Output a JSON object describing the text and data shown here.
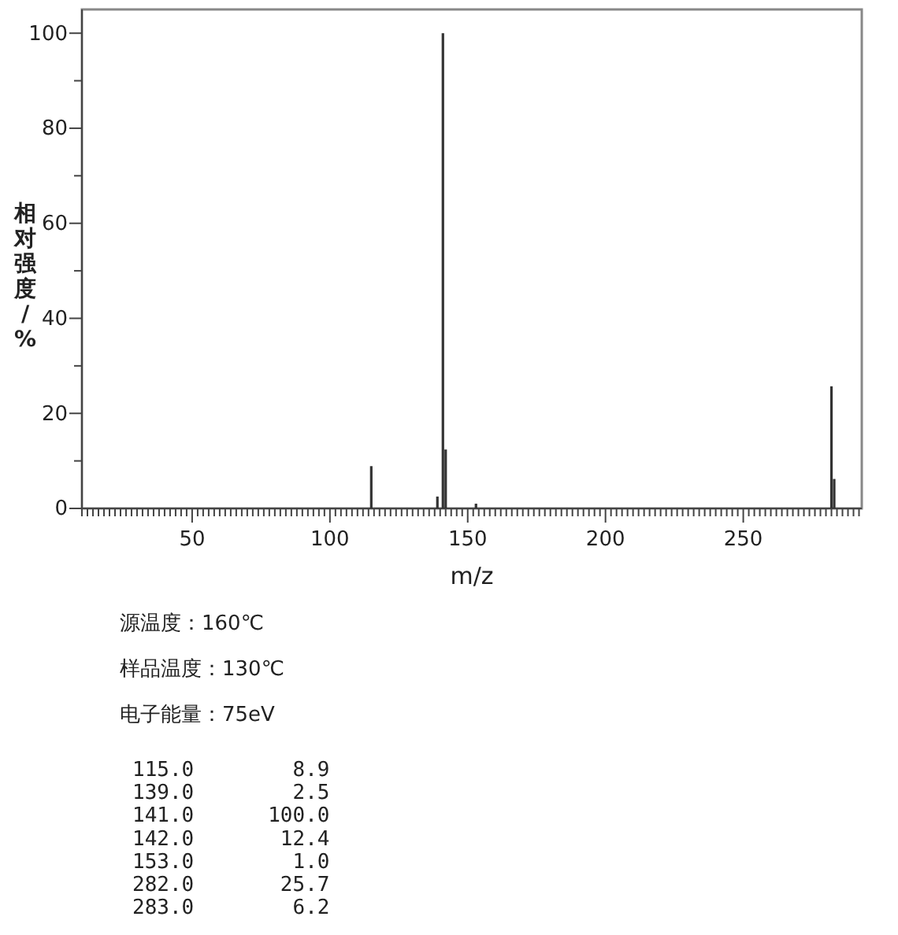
{
  "chart_data": {
    "type": "bar",
    "xlabel": "m/z",
    "ylabel": "相对强度/%",
    "x": [
      115,
      139,
      141,
      142,
      153,
      282,
      283
    ],
    "values": [
      8.9,
      2.5,
      100,
      12.4,
      1.0,
      25.7,
      6.2
    ],
    "color": "#333333",
    "xlim": [
      10,
      293
    ],
    "ylim": [
      0,
      105
    ],
    "xticks": [
      {
        "value": 10,
        "label": null
      },
      {
        "value": 12,
        "label": null
      },
      {
        "value": 14,
        "label": null
      },
      {
        "value": 16,
        "label": null
      },
      {
        "value": 18,
        "label": null
      },
      {
        "value": 20,
        "label": null
      },
      {
        "value": 22,
        "label": null
      },
      {
        "value": 24,
        "label": null
      },
      {
        "value": 26,
        "label": null
      },
      {
        "value": 28,
        "label": null
      },
      {
        "value": 30,
        "label": null
      },
      {
        "value": 32,
        "label": null
      },
      {
        "value": 34,
        "label": null
      },
      {
        "value": 36,
        "label": null
      },
      {
        "value": 38,
        "label": null
      },
      {
        "value": 40,
        "label": null
      },
      {
        "value": 42,
        "label": null
      },
      {
        "value": 44,
        "label": null
      },
      {
        "value": 46,
        "label": null
      },
      {
        "value": 48,
        "label": null
      },
      50,
      {
        "value": 52,
        "label": null
      },
      {
        "value": 54,
        "label": null
      },
      {
        "value": 56,
        "label": null
      },
      {
        "value": 58,
        "label": null
      },
      {
        "value": 60,
        "label": null
      },
      {
        "value": 62,
        "label": null
      },
      {
        "value": 64,
        "label": null
      },
      {
        "value": 66,
        "label": null
      },
      {
        "value": 68,
        "label": null
      },
      {
        "value": 70,
        "label": null
      },
      {
        "value": 72,
        "label": null
      },
      {
        "value": 74,
        "label": null
      },
      {
        "value": 76,
        "label": null
      },
      {
        "value": 78,
        "label": null
      },
      {
        "value": 80,
        "label": null
      },
      {
        "value": 82,
        "label": null
      },
      {
        "value": 84,
        "label": null
      },
      {
        "value": 86,
        "label": null
      },
      {
        "value": 88,
        "label": null
      },
      {
        "value": 90,
        "label": null
      },
      {
        "value": 92,
        "label": null
      },
      {
        "value": 94,
        "label": null
      },
      {
        "value": 96,
        "label": null
      },
      {
        "value": 98,
        "label": null
      },
      100,
      {
        "value": 102,
        "label": null
      },
      {
        "value": 104,
        "label": null
      },
      {
        "value": 106,
        "label": null
      },
      {
        "value": 108,
        "label": null
      },
      {
        "value": 110,
        "label": null
      },
      {
        "value": 112,
        "label": null
      },
      {
        "value": 114,
        "label": null
      },
      {
        "value": 116,
        "label": null
      },
      {
        "value": 118,
        "label": null
      },
      {
        "value": 120,
        "label": null
      },
      {
        "value": 122,
        "label": null
      },
      {
        "value": 124,
        "label": null
      },
      {
        "value": 126,
        "label": null
      },
      {
        "value": 128,
        "label": null
      },
      {
        "value": 130,
        "label": null
      },
      {
        "value": 132,
        "label": null
      },
      {
        "value": 134,
        "label": null
      },
      {
        "value": 136,
        "label": null
      },
      {
        "value": 138,
        "label": null
      },
      {
        "value": 140,
        "label": null
      },
      {
        "value": 142,
        "label": null
      },
      {
        "value": 144,
        "label": null
      },
      {
        "value": 146,
        "label": null
      },
      {
        "value": 148,
        "label": null
      },
      150,
      {
        "value": 152,
        "label": null
      },
      {
        "value": 154,
        "label": null
      },
      {
        "value": 156,
        "label": null
      },
      {
        "value": 158,
        "label": null
      },
      {
        "value": 160,
        "label": null
      },
      {
        "value": 162,
        "label": null
      },
      {
        "value": 164,
        "label": null
      },
      {
        "value": 166,
        "label": null
      },
      {
        "value": 168,
        "label": null
      },
      {
        "value": 170,
        "label": null
      },
      {
        "value": 172,
        "label": null
      },
      {
        "value": 174,
        "label": null
      },
      {
        "value": 176,
        "label": null
      },
      {
        "value": 178,
        "label": null
      },
      {
        "value": 180,
        "label": null
      },
      {
        "value": 182,
        "label": null
      },
      {
        "value": 184,
        "label": null
      },
      {
        "value": 186,
        "label": null
      },
      {
        "value": 188,
        "label": null
      },
      {
        "value": 190,
        "label": null
      },
      {
        "value": 192,
        "label": null
      },
      {
        "value": 194,
        "label": null
      },
      {
        "value": 196,
        "label": null
      },
      {
        "value": 198,
        "label": null
      },
      200,
      {
        "value": 202,
        "label": null
      },
      {
        "value": 204,
        "label": null
      },
      {
        "value": 206,
        "label": null
      },
      {
        "value": 208,
        "label": null
      },
      {
        "value": 210,
        "label": null
      },
      {
        "value": 212,
        "label": null
      },
      {
        "value": 214,
        "label": null
      },
      {
        "value": 216,
        "label": null
      },
      {
        "value": 218,
        "label": null
      },
      {
        "value": 220,
        "label": null
      },
      {
        "value": 222,
        "label": null
      },
      {
        "value": 224,
        "label": null
      },
      {
        "value": 226,
        "label": null
      },
      {
        "value": 228,
        "label": null
      },
      {
        "value": 230,
        "label": null
      },
      {
        "value": 232,
        "label": null
      },
      {
        "value": 234,
        "label": null
      },
      {
        "value": 236,
        "label": null
      },
      {
        "value": 238,
        "label": null
      },
      {
        "value": 240,
        "label": null
      },
      {
        "value": 242,
        "label": null
      },
      {
        "value": 244,
        "label": null
      },
      {
        "value": 246,
        "label": null
      },
      {
        "value": 248,
        "label": null
      },
      250,
      {
        "value": 252,
        "label": null
      },
      {
        "value": 254,
        "label": null
      },
      {
        "value": 256,
        "label": null
      },
      {
        "value": 258,
        "label": null
      },
      {
        "value": 260,
        "label": null
      },
      {
        "value": 262,
        "label": null
      },
      {
        "value": 264,
        "label": null
      },
      {
        "value": 266,
        "label": null
      },
      {
        "value": 268,
        "label": null
      },
      {
        "value": 270,
        "label": null
      },
      {
        "value": 272,
        "label": null
      },
      {
        "value": 274,
        "label": null
      },
      {
        "value": 276,
        "label": null
      },
      {
        "value": 278,
        "label": null
      },
      {
        "value": 280,
        "label": null
      },
      {
        "value": 282,
        "label": null
      },
      {
        "value": 284,
        "label": null
      },
      {
        "value": 286,
        "label": null
      },
      {
        "value": 288,
        "label": null
      },
      {
        "value": 290,
        "label": null
      },
      {
        "value": 292,
        "label": null
      }
    ],
    "yticks": [
      0,
      {
        "value": 10,
        "label": null
      },
      20,
      {
        "value": 30,
        "label": null
      },
      40,
      {
        "value": 50,
        "label": null
      },
      60,
      {
        "value": 70,
        "label": null
      },
      80,
      {
        "value": 90,
        "label": null
      },
      100
    ],
    "annotations": [
      "源温度：160℃",
      "样品温度：130℃",
      "电子能量：75eV",
      "115.0        8.9",
      "139.0        2.5",
      "141.0      100.0",
      "142.0       12.4",
      "153.0        1.0",
      "282.0       25.7",
      "283.0        6.2"
    ]
  }
}
